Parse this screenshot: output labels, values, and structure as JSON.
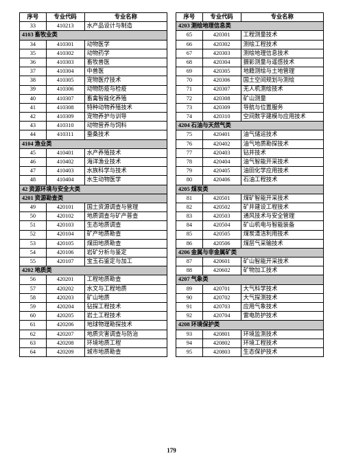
{
  "page_number": "179",
  "headers": {
    "idx": "序号",
    "code": "专业代码",
    "name": "专业名称"
  },
  "section_bg": "#c8c8c8",
  "border_color": "#000000",
  "font_size_pt": 8.3,
  "left": [
    {
      "type": "row",
      "idx": "33",
      "code": "410213",
      "name": "水产品设计与制造"
    },
    {
      "type": "section",
      "label": "4103 畜牧业类"
    },
    {
      "type": "row",
      "idx": "34",
      "code": "410301",
      "name": "动物医学"
    },
    {
      "type": "row",
      "idx": "35",
      "code": "410302",
      "name": "动物药学"
    },
    {
      "type": "row",
      "idx": "36",
      "code": "410303",
      "name": "畜牧兽医"
    },
    {
      "type": "row",
      "idx": "37",
      "code": "410304",
      "name": "中兽医"
    },
    {
      "type": "row",
      "idx": "38",
      "code": "410305",
      "name": "宠物医疗技术"
    },
    {
      "type": "row",
      "idx": "39",
      "code": "410306",
      "name": "动物防疫与检疫"
    },
    {
      "type": "row",
      "idx": "40",
      "code": "410307",
      "name": "畜禽智能化养殖"
    },
    {
      "type": "row",
      "idx": "41",
      "code": "410308",
      "name": "特种动物养殖技术"
    },
    {
      "type": "row",
      "idx": "42",
      "code": "410309",
      "name": "宠物养护与训导"
    },
    {
      "type": "row",
      "idx": "43",
      "code": "410310",
      "name": "动物营养与饲料"
    },
    {
      "type": "row",
      "idx": "44",
      "code": "410311",
      "name": "蚕桑技术"
    },
    {
      "type": "section",
      "label": "4104 渔业类"
    },
    {
      "type": "row",
      "idx": "45",
      "code": "410401",
      "name": "水产养殖技术"
    },
    {
      "type": "row",
      "idx": "46",
      "code": "410402",
      "name": "海洋渔业技术"
    },
    {
      "type": "row",
      "idx": "47",
      "code": "410403",
      "name": "水族科学与技术"
    },
    {
      "type": "row",
      "idx": "48",
      "code": "410404",
      "name": "水生动物医学"
    },
    {
      "type": "section",
      "label": "42 资源环境与安全大类"
    },
    {
      "type": "section",
      "label": "4201 资源勘查类"
    },
    {
      "type": "row",
      "idx": "49",
      "code": "420101",
      "name": "国土资源调查与管理"
    },
    {
      "type": "row",
      "idx": "50",
      "code": "420102",
      "name": "地质调查与矿产普查"
    },
    {
      "type": "row",
      "idx": "51",
      "code": "420103",
      "name": "生态地质调查"
    },
    {
      "type": "row",
      "idx": "52",
      "code": "420104",
      "name": "矿产地质勘查"
    },
    {
      "type": "row",
      "idx": "53",
      "code": "420105",
      "name": "煤田地质勘查"
    },
    {
      "type": "row",
      "idx": "54",
      "code": "420106",
      "name": "岩矿分析与鉴定"
    },
    {
      "type": "row",
      "idx": "55",
      "code": "420107",
      "name": "宝玉石鉴定与加工"
    },
    {
      "type": "section",
      "label": "4202 地质类"
    },
    {
      "type": "row",
      "idx": "56",
      "code": "420201",
      "name": "工程地质勘查"
    },
    {
      "type": "row",
      "idx": "57",
      "code": "420202",
      "name": "水文与工程地质"
    },
    {
      "type": "row",
      "idx": "58",
      "code": "420203",
      "name": "矿山地质"
    },
    {
      "type": "row",
      "idx": "59",
      "code": "420204",
      "name": "钻探工程技术"
    },
    {
      "type": "row",
      "idx": "60",
      "code": "420205",
      "name": "岩土工程技术"
    },
    {
      "type": "row",
      "idx": "61",
      "code": "420206",
      "name": "地球物理勘探技术"
    },
    {
      "type": "row",
      "idx": "62",
      "code": "420207",
      "name": "地质灾害调查与防治"
    },
    {
      "type": "row",
      "idx": "63",
      "code": "420208",
      "name": "环境地质工程"
    },
    {
      "type": "row",
      "idx": "64",
      "code": "420209",
      "name": "城市地质勘查"
    }
  ],
  "right": [
    {
      "type": "section",
      "label": "4203 测绘地理信息类"
    },
    {
      "type": "row",
      "idx": "65",
      "code": "420301",
      "name": "工程测量技术"
    },
    {
      "type": "row",
      "idx": "66",
      "code": "420302",
      "name": "测绘工程技术"
    },
    {
      "type": "row",
      "idx": "67",
      "code": "420303",
      "name": "测绘地理信息技术"
    },
    {
      "type": "row",
      "idx": "68",
      "code": "420304",
      "name": "摄影测量与遥感技术"
    },
    {
      "type": "row",
      "idx": "69",
      "code": "420305",
      "name": "地籍测绘与土地管理"
    },
    {
      "type": "row",
      "idx": "70",
      "code": "420306",
      "name": "国土空间规划与测绘"
    },
    {
      "type": "row",
      "idx": "71",
      "code": "420307",
      "name": "无人机测绘技术"
    },
    {
      "type": "row",
      "idx": "72",
      "code": "420308",
      "name": "矿山测量"
    },
    {
      "type": "row",
      "idx": "73",
      "code": "420309",
      "name": "导航与位置服务"
    },
    {
      "type": "row",
      "idx": "74",
      "code": "420310",
      "name": "空间数字建模与应用技术"
    },
    {
      "type": "section",
      "label": "4204 石油与天然气类"
    },
    {
      "type": "row",
      "idx": "75",
      "code": "420401",
      "name": "油气储运技术"
    },
    {
      "type": "row",
      "idx": "76",
      "code": "420402",
      "name": "油气地质勘探技术"
    },
    {
      "type": "row",
      "idx": "77",
      "code": "420403",
      "name": "钻井技术"
    },
    {
      "type": "row",
      "idx": "78",
      "code": "420404",
      "name": "油气智能开采技术"
    },
    {
      "type": "row",
      "idx": "79",
      "code": "420405",
      "name": "油田化学应用技术"
    },
    {
      "type": "row",
      "idx": "80",
      "code": "420406",
      "name": "石油工程技术"
    },
    {
      "type": "section",
      "label": "4205 煤炭类"
    },
    {
      "type": "row",
      "idx": "81",
      "code": "420501",
      "name": "煤矿智能开采技术"
    },
    {
      "type": "row",
      "idx": "82",
      "code": "420502",
      "name": "矿井建设工程技术"
    },
    {
      "type": "row",
      "idx": "83",
      "code": "420503",
      "name": "通风技术与安全管理"
    },
    {
      "type": "row",
      "idx": "84",
      "code": "420504",
      "name": "矿山机电与智能装备"
    },
    {
      "type": "row",
      "idx": "85",
      "code": "420505",
      "name": "煤炭清洁利用技术"
    },
    {
      "type": "row",
      "idx": "86",
      "code": "420506",
      "name": "煤层气采输技术"
    },
    {
      "type": "section",
      "label": "4206 金属与非金属矿类"
    },
    {
      "type": "row",
      "idx": "87",
      "code": "420601",
      "name": "矿山智能开采技术"
    },
    {
      "type": "row",
      "idx": "88",
      "code": "420602",
      "name": "矿物加工技术"
    },
    {
      "type": "section",
      "label": "4207 气象类"
    },
    {
      "type": "row",
      "idx": "89",
      "code": "420701",
      "name": "大气科学技术"
    },
    {
      "type": "row",
      "idx": "90",
      "code": "420702",
      "name": "大气探测技术"
    },
    {
      "type": "row",
      "idx": "91",
      "code": "420703",
      "name": "应用气象技术"
    },
    {
      "type": "row",
      "idx": "92",
      "code": "420704",
      "name": "雷电防护技术"
    },
    {
      "type": "section",
      "label": "4208 环境保护类"
    },
    {
      "type": "row",
      "idx": "93",
      "code": "420801",
      "name": "环境监测技术"
    },
    {
      "type": "row",
      "idx": "94",
      "code": "420802",
      "name": "环境工程技术"
    },
    {
      "type": "row",
      "idx": "95",
      "code": "420803",
      "name": "生态保护技术"
    }
  ]
}
